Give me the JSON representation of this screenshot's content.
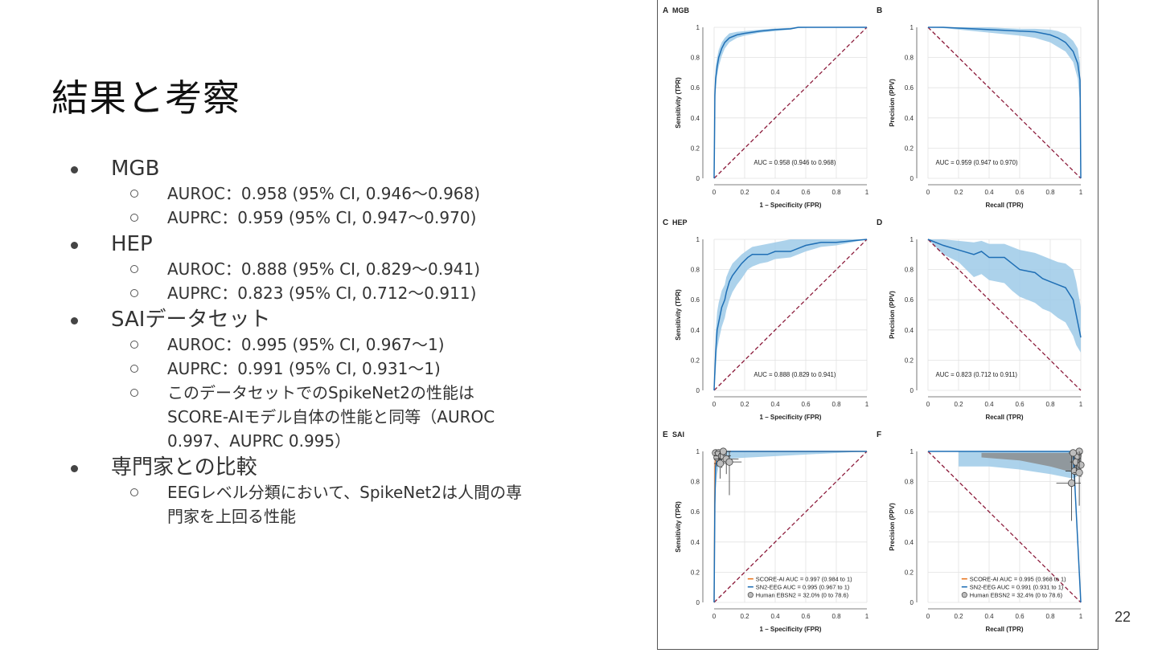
{
  "slide": {
    "title": "結果と考察",
    "page_number": "22",
    "bullets": [
      {
        "text": "MGB",
        "sub": [
          "AUROC：0.958 (95% CI, 0.946〜0.968)",
          "AUPRC：0.959 (95% CI, 0.947〜0.970)"
        ]
      },
      {
        "text": "HEP",
        "sub": [
          "AUROC：0.888 (95% CI, 0.829〜0.941)",
          "AUPRC：0.823 (95% CI, 0.712〜0.911)"
        ]
      },
      {
        "text": "SAIデータセット",
        "sub": [
          "AUROC：0.995 (95% CI, 0.967〜1)",
          "AUPRC：0.991 (95% CI, 0.931〜1)",
          "このデータセットでのSpikeNet2の性能は\nSCORE-AIモデル自体の性能と同等（AUROC\n0.997、AUPRC 0.995）"
        ]
      },
      {
        "text": "専門家との比較",
        "sub": [
          "EEGレベル分類において、SpikeNet2は人間の専\n門家を上回る性能"
        ]
      }
    ]
  },
  "colors": {
    "curve": "#1f6fb5",
    "band": "#9ecae8",
    "diag": "#8b1a3a",
    "grid": "#e2e2e2",
    "orange": "#e87722",
    "human_fill": "#bdbdbd",
    "human_band": "#8a8a8a"
  },
  "chart_data": [
    {
      "panel": "A",
      "title": "MGB",
      "type": "line",
      "xlabel": "1 – Specificity (FPR)",
      "ylabel": "Sensitivity (TPR)",
      "xlim": [
        0,
        1
      ],
      "ylim": [
        0,
        1
      ],
      "ticks": [
        "0",
        "0.2",
        "0.4",
        "0.6",
        "0.8",
        "1"
      ],
      "x": [
        0,
        0.003,
        0.005,
        0.01,
        0.02,
        0.03,
        0.05,
        0.07,
        0.1,
        0.15,
        0.2,
        0.3,
        0.4,
        0.5,
        0.55,
        0.7,
        1
      ],
      "y": [
        0,
        0.3,
        0.55,
        0.66,
        0.74,
        0.8,
        0.86,
        0.9,
        0.93,
        0.95,
        0.96,
        0.975,
        0.985,
        0.99,
        1,
        1,
        1
      ],
      "lower": [
        0,
        0.2,
        0.45,
        0.58,
        0.68,
        0.74,
        0.81,
        0.86,
        0.9,
        0.93,
        0.945,
        0.965,
        0.975,
        0.985,
        0.995,
        1,
        1
      ],
      "upper": [
        0,
        0.42,
        0.64,
        0.74,
        0.8,
        0.85,
        0.9,
        0.93,
        0.96,
        0.97,
        0.975,
        0.985,
        0.992,
        0.997,
        1,
        1,
        1
      ],
      "annotation": "AUC = 0.958 (0.946 to 0.968)"
    },
    {
      "panel": "B",
      "type": "line",
      "xlabel": "Recall (TPR)",
      "ylabel": "Precision (PPV)",
      "xlim": [
        0,
        1
      ],
      "ylim": [
        0,
        1
      ],
      "ticks": [
        "0",
        "0.2",
        "0.4",
        "0.6",
        "0.8",
        "1"
      ],
      "x": [
        0,
        0.1,
        0.2,
        0.3,
        0.4,
        0.5,
        0.6,
        0.7,
        0.8,
        0.85,
        0.9,
        0.95,
        0.98,
        0.995,
        1
      ],
      "y": [
        1,
        1,
        0.995,
        0.99,
        0.985,
        0.98,
        0.975,
        0.97,
        0.95,
        0.93,
        0.9,
        0.84,
        0.76,
        0.65,
        0
      ],
      "lower": [
        1,
        0.995,
        0.985,
        0.975,
        0.965,
        0.955,
        0.945,
        0.93,
        0.9,
        0.87,
        0.84,
        0.77,
        0.66,
        0.5,
        0
      ],
      "upper": [
        1,
        1,
        1,
        1,
        1,
        0.995,
        0.99,
        0.99,
        0.985,
        0.975,
        0.955,
        0.91,
        0.86,
        0.76,
        0
      ],
      "annotation": "AUC = 0.959 (0.947 to 0.970)"
    },
    {
      "panel": "C",
      "title": "HEP",
      "type": "line",
      "xlabel": "1 – Specificity (FPR)",
      "ylabel": "Sensitivity (TPR)",
      "xlim": [
        0,
        1
      ],
      "ylim": [
        0,
        1
      ],
      "ticks": [
        "0",
        "0.2",
        "0.4",
        "0.6",
        "0.8",
        "1"
      ],
      "x": [
        0,
        0.01,
        0.02,
        0.03,
        0.05,
        0.07,
        0.08,
        0.1,
        0.12,
        0.15,
        0.18,
        0.22,
        0.25,
        0.3,
        0.35,
        0.4,
        0.5,
        0.6,
        0.7,
        0.8,
        1
      ],
      "y": [
        0,
        0.25,
        0.4,
        0.45,
        0.55,
        0.6,
        0.65,
        0.72,
        0.76,
        0.8,
        0.84,
        0.88,
        0.9,
        0.9,
        0.9,
        0.92,
        0.92,
        0.96,
        0.98,
        0.98,
        1
      ],
      "lower": [
        0,
        0.12,
        0.27,
        0.33,
        0.42,
        0.48,
        0.53,
        0.6,
        0.65,
        0.7,
        0.74,
        0.8,
        0.82,
        0.84,
        0.85,
        0.87,
        0.88,
        0.92,
        0.95,
        0.96,
        1
      ],
      "upper": [
        0,
        0.38,
        0.52,
        0.58,
        0.66,
        0.7,
        0.75,
        0.8,
        0.84,
        0.87,
        0.9,
        0.93,
        0.95,
        0.96,
        0.97,
        0.98,
        1,
        1,
        1,
        1,
        1
      ],
      "annotation": "AUC = 0.888 (0.829 to 0.941)"
    },
    {
      "panel": "D",
      "type": "line",
      "xlabel": "Recall (TPR)",
      "ylabel": "Precision (PPV)",
      "xlim": [
        0,
        1
      ],
      "ylim": [
        0,
        1
      ],
      "ticks": [
        "0",
        "0.2",
        "0.4",
        "0.6",
        "0.8",
        "1"
      ],
      "x": [
        0,
        0.1,
        0.2,
        0.3,
        0.35,
        0.4,
        0.5,
        0.55,
        0.6,
        0.7,
        0.75,
        0.8,
        0.85,
        0.9,
        0.95,
        0.97,
        1
      ],
      "y": [
        1,
        0.96,
        0.93,
        0.9,
        0.92,
        0.88,
        0.88,
        0.84,
        0.8,
        0.78,
        0.74,
        0.72,
        0.7,
        0.68,
        0.6,
        0.5,
        0.35
      ],
      "lower": [
        1,
        0.9,
        0.85,
        0.75,
        0.77,
        0.73,
        0.71,
        0.66,
        0.62,
        0.58,
        0.54,
        0.52,
        0.48,
        0.45,
        0.36,
        0.3,
        0.25
      ],
      "upper": [
        1,
        1,
        0.99,
        0.98,
        0.99,
        0.97,
        0.97,
        0.95,
        0.93,
        0.91,
        0.89,
        0.87,
        0.85,
        0.84,
        0.8,
        0.72,
        0.55
      ],
      "annotation": "AUC = 0.823 (0.712 to 0.911)"
    },
    {
      "panel": "E",
      "title": "SAI",
      "type": "line",
      "xlabel": "1 – Specificity (FPR)",
      "ylabel": "Sensitivity (TPR)",
      "xlim": [
        0,
        1
      ],
      "ylim": [
        0,
        1
      ],
      "ticks": [
        "0",
        "0.2",
        "0.4",
        "0.6",
        "0.8",
        "1"
      ],
      "x": [
        0,
        0.005,
        0.01,
        0.02,
        0.03,
        0.05,
        1
      ],
      "y": [
        0,
        0.65,
        0.9,
        0.95,
        0.98,
        1,
        1
      ],
      "lower": [
        0,
        0.5,
        0.75,
        0.85,
        0.9,
        0.95,
        1
      ],
      "upper": [
        0,
        0.8,
        0.97,
        1,
        1,
        1,
        1
      ],
      "orange_y": [
        0,
        0.9,
        1,
        1,
        1,
        1,
        1
      ],
      "human_points": [
        {
          "x": 0.01,
          "y": 0.99,
          "xerr": 0.02,
          "yerr": 0.03
        },
        {
          "x": 0.02,
          "y": 0.96,
          "xerr": 0.03,
          "yerr": 0.06
        },
        {
          "x": 0.03,
          "y": 0.99,
          "xerr": 0.04,
          "yerr": 0.05
        },
        {
          "x": 0.05,
          "y": 0.97,
          "xerr": 0.06,
          "yerr": 0.08
        },
        {
          "x": 0.06,
          "y": 1,
          "xerr": 0.05,
          "yerr": 0.03
        },
        {
          "x": 0.08,
          "y": 0.95,
          "xerr": 0.08,
          "yerr": 0.1
        },
        {
          "x": 0.1,
          "y": 0.93,
          "xerr": 0.08,
          "yerr": 0.22
        },
        {
          "x": 0.04,
          "y": 0.92,
          "xerr": 0.04,
          "yerr": 0.1
        }
      ],
      "legend": [
        "SCORE-AI AUC = 0.997 (0.984 to 1)",
        "SN2-EEG   AUC = 0.995 (0.967 to 1)",
        "Human EBSN2 = 32.0% (0 to 78.6)"
      ]
    },
    {
      "panel": "F",
      "type": "line",
      "xlabel": "Recall (TPR)",
      "ylabel": "Precision (PPV)",
      "xlim": [
        0,
        1
      ],
      "ylim": [
        0,
        1
      ],
      "ticks": [
        "0",
        "0.2",
        "0.4",
        "0.6",
        "0.8",
        "1"
      ],
      "x": [
        0,
        0.2,
        0.4,
        0.6,
        0.8,
        0.95,
        1
      ],
      "y": [
        1,
        1,
        1,
        1,
        1,
        1,
        0
      ],
      "band_upper": [
        1,
        1,
        1,
        1,
        1,
        1
      ],
      "band_lower": [
        0.9,
        0.9,
        0.88,
        0.85,
        0.82,
        0.85
      ],
      "band_x": [
        0.2,
        0.4,
        0.6,
        0.8,
        0.95,
        1
      ],
      "human_band": {
        "x": [
          0.35,
          0.6,
          0.8,
          0.95,
          1
        ],
        "upper": [
          0.99,
          0.99,
          0.99,
          0.99,
          1
        ],
        "lower": [
          0.96,
          0.94,
          0.9,
          0.86,
          0.85
        ]
      },
      "human_points": [
        {
          "x": 0.94,
          "y": 0.79,
          "xerr": 0.1,
          "yerr": 0.25
        },
        {
          "x": 0.96,
          "y": 0.87,
          "xerr": 0.06,
          "yerr": 0.1
        },
        {
          "x": 0.97,
          "y": 0.93,
          "xerr": 0.04,
          "yerr": 0.06
        },
        {
          "x": 0.98,
          "y": 0.97,
          "xerr": 0.03,
          "yerr": 0.05
        },
        {
          "x": 0.99,
          "y": 1,
          "xerr": 0.02,
          "yerr": 0.03
        },
        {
          "x": 1,
          "y": 0.91,
          "xerr": 0.03,
          "yerr": 0.08
        },
        {
          "x": 0.95,
          "y": 0.99,
          "xerr": 0.03,
          "yerr": 0.04
        },
        {
          "x": 0.99,
          "y": 0.86,
          "xerr": 0.04,
          "yerr": 0.22
        }
      ],
      "legend": [
        "SCORE-AI AUC = 0.995 (0.968 to 1)",
        "SN2-EEG   AUC = 0.991 (0.931 to 1)",
        "Human EBSN2 = 32.4% (0 to 78.6)"
      ]
    }
  ]
}
